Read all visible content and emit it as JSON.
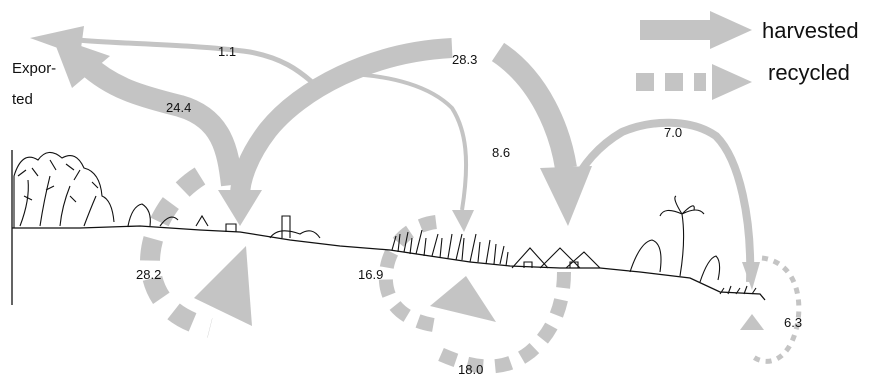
{
  "legend": {
    "harvested": "harvested",
    "recycled": "recycled"
  },
  "exported_label": [
    "Expor-",
    "ted"
  ],
  "flows": {
    "f_1_1": "1.1",
    "f_28_3": "28.3",
    "f_24_4": "24.4",
    "f_8_6": "8.6",
    "f_7_0": "7.0",
    "f_28_2": "28.2",
    "f_16_9": "16.9",
    "f_18_0": "18.0",
    "f_6_3": "6.3"
  },
  "colors": {
    "arrow": "#c4c4c4",
    "ink": "#111111"
  }
}
